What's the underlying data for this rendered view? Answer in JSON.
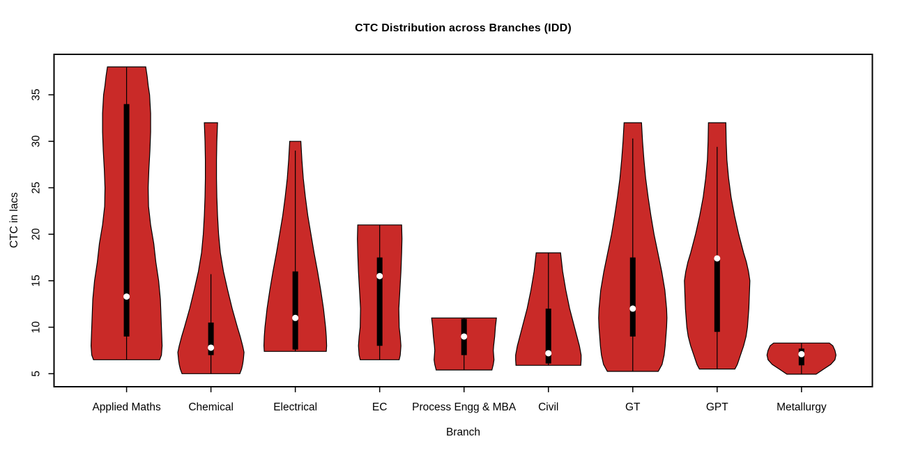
{
  "chart_data": {
    "type": "violin",
    "title": "CTC Distribution across Branches (IDD)",
    "xlabel": "Branch",
    "ylabel": "CTC in lacs",
    "yticks": [
      5,
      10,
      15,
      20,
      25,
      30,
      35
    ],
    "ylim": [
      3.6,
      39.35
    ],
    "xlim": [
      0.14,
      9.84
    ],
    "grid": false,
    "legend": "none",
    "style": {
      "fill": "#C92A28",
      "outline": "#000000",
      "box_color": "#000000",
      "median_dot": "#FFFFFF",
      "axis_color": "#000000"
    },
    "categories": [
      "Applied Maths",
      "Chemical",
      "Electrical",
      "EC",
      "Process Engg & MBA",
      "Civil",
      "GT",
      "GPT",
      "Metallurgy"
    ],
    "series": [
      {
        "name": "Applied Maths",
        "min": 6.5,
        "max": 38,
        "q1": 9,
        "median": 13.3,
        "q3": 34,
        "whisker_low": 6.5,
        "whisker_high": 38,
        "profile": [
          [
            38,
            27.5
          ],
          [
            37,
            29.5
          ],
          [
            36,
            31
          ],
          [
            35,
            33
          ],
          [
            33,
            34.5
          ],
          [
            31,
            34.5
          ],
          [
            29,
            33.5
          ],
          [
            27,
            32
          ],
          [
            25,
            31
          ],
          [
            23,
            31.5
          ],
          [
            21,
            34.5
          ],
          [
            19,
            39
          ],
          [
            17,
            42
          ],
          [
            15,
            46
          ],
          [
            13,
            48.5
          ],
          [
            11,
            49.5
          ],
          [
            9,
            50.5
          ],
          [
            8,
            51
          ],
          [
            7,
            50
          ],
          [
            6.5,
            47.5
          ]
        ]
      },
      {
        "name": "Chemical",
        "min": 5,
        "max": 32,
        "q1": 7,
        "median": 7.8,
        "q3": 10.5,
        "whisker_low": 5,
        "whisker_high": 15.7,
        "profile": [
          [
            32,
            9.5
          ],
          [
            30,
            8.5
          ],
          [
            28,
            8
          ],
          [
            26,
            8
          ],
          [
            24,
            8.5
          ],
          [
            22,
            9.5
          ],
          [
            20,
            11
          ],
          [
            18,
            13.5
          ],
          [
            16,
            18
          ],
          [
            14,
            24
          ],
          [
            12,
            30.5
          ],
          [
            10,
            38
          ],
          [
            9,
            42
          ],
          [
            8,
            45.5
          ],
          [
            7.3,
            47.5
          ],
          [
            6.5,
            46.5
          ],
          [
            6,
            45.5
          ],
          [
            5.5,
            44
          ],
          [
            5,
            41.5
          ]
        ]
      },
      {
        "name": "Electrical",
        "min": 7.4,
        "max": 30,
        "q1": 7.6,
        "median": 11,
        "q3": 16,
        "whisker_low": 7.4,
        "whisker_high": 29,
        "profile": [
          [
            30,
            8
          ],
          [
            28,
            9.5
          ],
          [
            26,
            11.5
          ],
          [
            24,
            14.5
          ],
          [
            22,
            18
          ],
          [
            20,
            22.5
          ],
          [
            18,
            27
          ],
          [
            16,
            32
          ],
          [
            14,
            36.5
          ],
          [
            12,
            40.5
          ],
          [
            10,
            43.5
          ],
          [
            9,
            44.5
          ],
          [
            8,
            45
          ],
          [
            7.4,
            44.5
          ]
        ]
      },
      {
        "name": "EC",
        "min": 6.5,
        "max": 21,
        "q1": 8,
        "median": 15.5,
        "q3": 17.5,
        "whisker_low": 6.5,
        "whisker_high": 21,
        "profile": [
          [
            21,
            31.5
          ],
          [
            19.5,
            32
          ],
          [
            18,
            31.5
          ],
          [
            16,
            30.5
          ],
          [
            14,
            29
          ],
          [
            12,
            27.5
          ],
          [
            10,
            28
          ],
          [
            9,
            29.5
          ],
          [
            8,
            30.5
          ],
          [
            7,
            29.5
          ],
          [
            6.5,
            28
          ]
        ]
      },
      {
        "name": "Process Engg & MBA",
        "min": 5.4,
        "max": 11,
        "q1": 7,
        "median": 9,
        "q3": 10.9,
        "whisker_low": 5.4,
        "whisker_high": 11,
        "profile": [
          [
            11,
            46.5
          ],
          [
            10,
            45
          ],
          [
            9,
            44
          ],
          [
            8,
            42.5
          ],
          [
            7.5,
            42
          ],
          [
            7,
            42.5
          ],
          [
            6.5,
            43
          ],
          [
            6,
            42
          ],
          [
            5.4,
            40
          ]
        ]
      },
      {
        "name": "Civil",
        "min": 5.9,
        "max": 18,
        "q1": 6.1,
        "median": 7.2,
        "q3": 12,
        "whisker_low": 5.9,
        "whisker_high": 18,
        "profile": [
          [
            18,
            17.5
          ],
          [
            16,
            20.5
          ],
          [
            14,
            25
          ],
          [
            12,
            30.5
          ],
          [
            10,
            37.5
          ],
          [
            8,
            44.5
          ],
          [
            7,
            47
          ],
          [
            6.5,
            47
          ],
          [
            5.9,
            46.5
          ]
        ]
      },
      {
        "name": "GT",
        "min": 5.25,
        "max": 32,
        "q1": 9,
        "median": 12,
        "q3": 17.5,
        "whisker_low": 5.25,
        "whisker_high": 30.3,
        "profile": [
          [
            32,
            12.5
          ],
          [
            30,
            14
          ],
          [
            28,
            16
          ],
          [
            26,
            18.5
          ],
          [
            24,
            22
          ],
          [
            22,
            26
          ],
          [
            20,
            30.5
          ],
          [
            18,
            36
          ],
          [
            16,
            41.5
          ],
          [
            14,
            46
          ],
          [
            12,
            48.5
          ],
          [
            11,
            49
          ],
          [
            10,
            48.5
          ],
          [
            8,
            46.5
          ],
          [
            7,
            45
          ],
          [
            6,
            42
          ],
          [
            5.25,
            36.5
          ]
        ]
      },
      {
        "name": "GPT",
        "min": 5.5,
        "max": 32,
        "q1": 9.5,
        "median": 17.4,
        "q3": 17.4,
        "whisker_low": 5.5,
        "whisker_high": 29.4,
        "profile": [
          [
            32,
            12.5
          ],
          [
            30,
            13
          ],
          [
            28,
            14
          ],
          [
            26,
            16.5
          ],
          [
            24,
            20
          ],
          [
            22,
            25
          ],
          [
            20,
            31
          ],
          [
            18,
            38
          ],
          [
            17,
            42
          ],
          [
            16,
            45
          ],
          [
            15,
            47
          ],
          [
            14,
            46.5
          ],
          [
            12,
            45.5
          ],
          [
            10,
            43.5
          ],
          [
            9,
            41.5
          ],
          [
            8,
            38
          ],
          [
            7,
            33.5
          ],
          [
            6,
            29
          ],
          [
            5.5,
            25.5
          ]
        ]
      },
      {
        "name": "Metallurgy",
        "min": 4.95,
        "max": 8.3,
        "q1": 5.9,
        "median": 7.1,
        "q3": 7.7,
        "whisker_low": 4.95,
        "whisker_high": 8.3,
        "profile": [
          [
            8.3,
            40
          ],
          [
            8,
            45
          ],
          [
            7.5,
            48
          ],
          [
            7,
            49.5
          ],
          [
            6.5,
            48
          ],
          [
            6,
            42
          ],
          [
            5.5,
            32
          ],
          [
            4.95,
            21
          ]
        ]
      }
    ]
  }
}
